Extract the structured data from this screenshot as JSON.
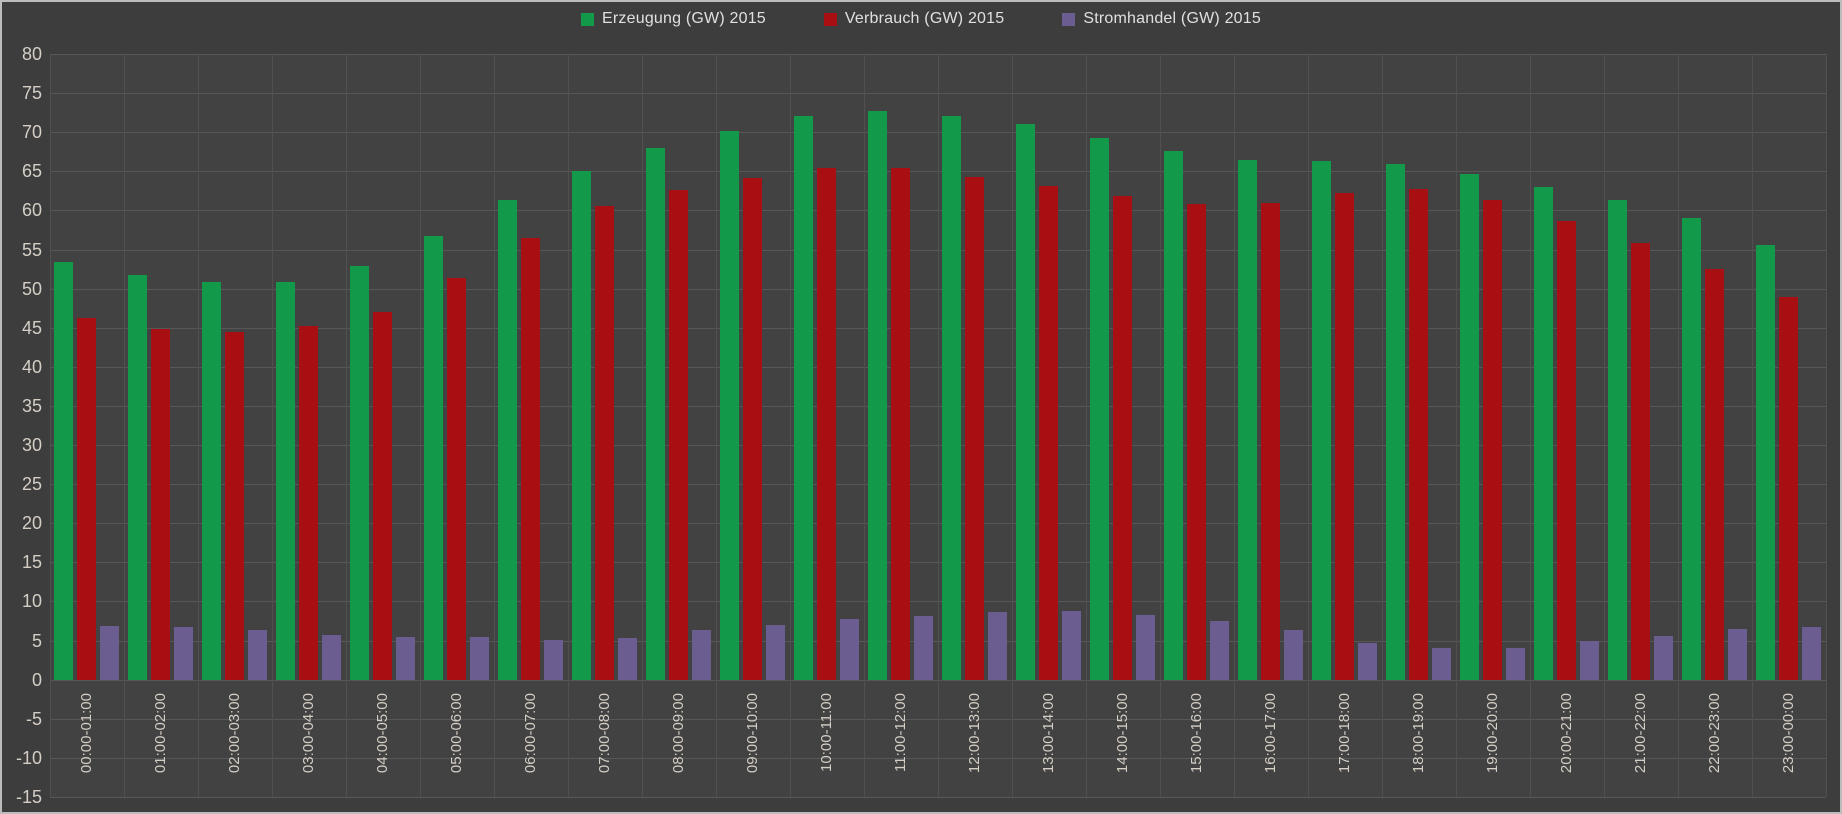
{
  "colors": {
    "background": "#3d3d3d",
    "plot_background": "#424242",
    "gridline": "#575757",
    "tick_text": "#d4cec5",
    "legend_text": "#e2e0de",
    "border": "#bcbcbc",
    "erzeugung": "#12994a",
    "verbrauch": "#a80f12",
    "stromhandel": "#6c5d91"
  },
  "chart_data": {
    "type": "bar",
    "title": "",
    "xlabel": "",
    "ylabel": "",
    "ylim": [
      -15,
      80
    ],
    "ytick_step": 5,
    "grid": true,
    "legend_position": "top-center",
    "yticks": [
      80,
      75,
      70,
      65,
      60,
      55,
      50,
      45,
      40,
      35,
      30,
      25,
      20,
      15,
      10,
      5,
      0,
      -5,
      -10,
      -15
    ],
    "categories": [
      "00:00-01:00",
      "01:00-02:00",
      "02:00-03:00",
      "03:00-04:00",
      "04:00-05:00",
      "05:00-06:00",
      "06:00-07:00",
      "07:00-08:00",
      "08:00-09:00",
      "09:00-10:00",
      "10:00-11:00",
      "11:00-12:00",
      "12:00-13:00",
      "13:00-14:00",
      "14:00-15:00",
      "15:00-16:00",
      "16:00-17:00",
      "17:00-18:00",
      "18:00-19:00",
      "19:00-20:00",
      "20:00-21:00",
      "21:00-22:00",
      "22:00-23:00",
      "23:00-00:00"
    ],
    "series": [
      {
        "name": "Erzeugung (GW) 2015",
        "color": "#12994a",
        "values": [
          53.4,
          51.8,
          50.8,
          50.9,
          52.9,
          56.7,
          61.3,
          65.1,
          68.0,
          70.1,
          72.1,
          72.7,
          72.1,
          71.0,
          69.3,
          67.6,
          66.5,
          66.3,
          65.9,
          64.7,
          63.0,
          61.3,
          59.0,
          55.6
        ]
      },
      {
        "name": "Verbrauch (GW) 2015",
        "color": "#a80f12",
        "values": [
          46.3,
          44.8,
          44.5,
          45.2,
          47.0,
          51.4,
          56.5,
          60.5,
          62.6,
          64.1,
          65.4,
          65.4,
          64.3,
          63.1,
          61.8,
          60.8,
          60.9,
          62.2,
          62.7,
          61.3,
          58.7,
          55.8,
          52.5,
          48.9
        ]
      },
      {
        "name": "Stromhandel (GW) 2015",
        "color": "#6c5d91",
        "values": [
          6.9,
          6.7,
          6.4,
          5.7,
          5.5,
          5.4,
          5.1,
          5.3,
          6.3,
          7.0,
          7.7,
          8.1,
          8.7,
          8.8,
          8.3,
          7.5,
          6.4,
          4.7,
          4.1,
          4.1,
          4.9,
          5.6,
          6.5,
          6.7
        ]
      }
    ]
  }
}
